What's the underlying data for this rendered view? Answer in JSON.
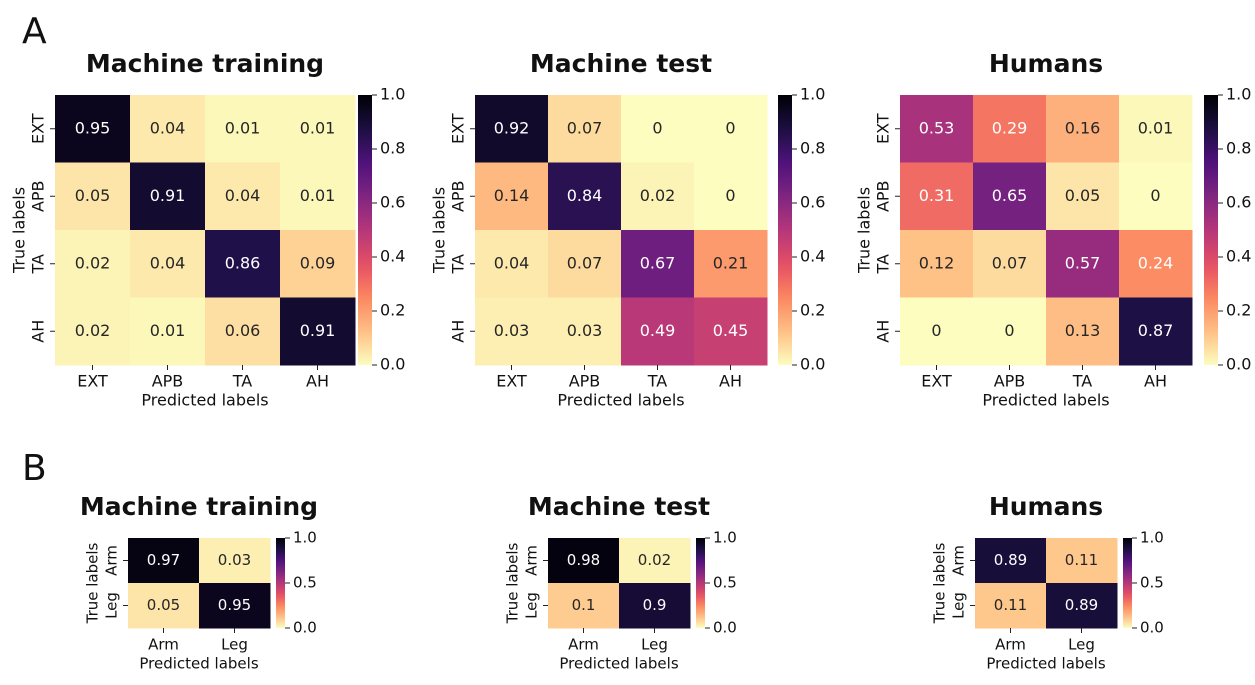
{
  "panel_labels": [
    "A",
    "B"
  ],
  "chart_data": [
    {
      "type": "heatmap",
      "title": "Machine training",
      "x_label": "Predicted labels",
      "y_label": "True labels",
      "x_categories": [
        "EXT",
        "APB",
        "TA",
        "AH"
      ],
      "y_categories": [
        "EXT",
        "APB",
        "TA",
        "AH"
      ],
      "values": [
        [
          0.95,
          0.04,
          0.01,
          0.01
        ],
        [
          0.05,
          0.91,
          0.04,
          0.01
        ],
        [
          0.02,
          0.04,
          0.86,
          0.09
        ],
        [
          0.02,
          0.01,
          0.06,
          0.91
        ]
      ],
      "colormap": "magma_r",
      "clim": [
        0,
        1
      ],
      "cticks": [
        {
          "value": 0,
          "label": "0.0"
        },
        0.2,
        0.4,
        0.6,
        0.8,
        {
          "value": 1,
          "label": "1.0"
        }
      ]
    },
    {
      "type": "heatmap",
      "title": "Machine test",
      "x_label": "Predicted labels",
      "y_label": "True labels",
      "x_categories": [
        "EXT",
        "APB",
        "TA",
        "AH"
      ],
      "y_categories": [
        "EXT",
        "APB",
        "TA",
        "AH"
      ],
      "values": [
        [
          0.92,
          0.07,
          0,
          0
        ],
        [
          0.14,
          0.84,
          0.02,
          0
        ],
        [
          0.04,
          0.07,
          0.67,
          0.21
        ],
        [
          0.03,
          0.03,
          0.49,
          0.45
        ]
      ],
      "colormap": "magma_r",
      "clim": [
        0,
        1
      ],
      "cticks": [
        {
          "value": 0,
          "label": "0.0"
        },
        0.2,
        0.4,
        0.6,
        0.8,
        {
          "value": 1,
          "label": "1.0"
        }
      ]
    },
    {
      "type": "heatmap",
      "title": "Humans",
      "x_label": "Predicted labels",
      "y_label": "True labels",
      "x_categories": [
        "EXT",
        "APB",
        "TA",
        "AH"
      ],
      "y_categories": [
        "EXT",
        "APB",
        "TA",
        "AH"
      ],
      "values": [
        [
          0.53,
          0.29,
          0.16,
          0.01
        ],
        [
          0.31,
          0.65,
          0.05,
          0
        ],
        [
          0.12,
          0.07,
          0.57,
          0.24
        ],
        [
          0,
          0,
          0.13,
          0.87
        ]
      ],
      "colormap": "magma_r",
      "clim": [
        0,
        1
      ],
      "cticks": [
        {
          "value": 0,
          "label": "0.0"
        },
        0.2,
        0.4,
        0.6,
        0.8,
        {
          "value": 1,
          "label": "1.0"
        }
      ]
    },
    {
      "type": "heatmap",
      "title": "Machine training",
      "x_label": "Predicted labels",
      "y_label": "True labels",
      "x_categories": [
        "Arm",
        "Leg"
      ],
      "y_categories": [
        "Arm",
        "Leg"
      ],
      "values": [
        [
          0.97,
          0.03
        ],
        [
          0.05,
          0.95
        ]
      ],
      "colormap": "magma_r",
      "clim": [
        0,
        1
      ],
      "cticks": [
        {
          "value": 0,
          "label": "0.0"
        },
        0.5,
        {
          "value": 1,
          "label": "1.0"
        }
      ]
    },
    {
      "type": "heatmap",
      "title": "Machine test",
      "x_label": "Predicted labels",
      "y_label": "True labels",
      "x_categories": [
        "Arm",
        "Leg"
      ],
      "y_categories": [
        "Arm",
        "Leg"
      ],
      "values": [
        [
          0.98,
          0.02
        ],
        [
          0.1,
          0.9
        ]
      ],
      "colormap": "magma_r",
      "clim": [
        0,
        1
      ],
      "cticks": [
        {
          "value": 0,
          "label": "0.0"
        },
        0.5,
        {
          "value": 1,
          "label": "1.0"
        }
      ]
    },
    {
      "type": "heatmap",
      "title": "Humans",
      "x_label": "Predicted labels",
      "y_label": "True labels",
      "x_categories": [
        "Arm",
        "Leg"
      ],
      "y_categories": [
        "Arm",
        "Leg"
      ],
      "values": [
        [
          0.89,
          0.11
        ],
        [
          0.11,
          0.89
        ]
      ],
      "colormap": "magma_r",
      "clim": [
        0,
        1
      ],
      "cticks": [
        {
          "value": 0,
          "label": "0.0"
        },
        0.5,
        {
          "value": 1,
          "label": "1.0"
        }
      ]
    }
  ]
}
